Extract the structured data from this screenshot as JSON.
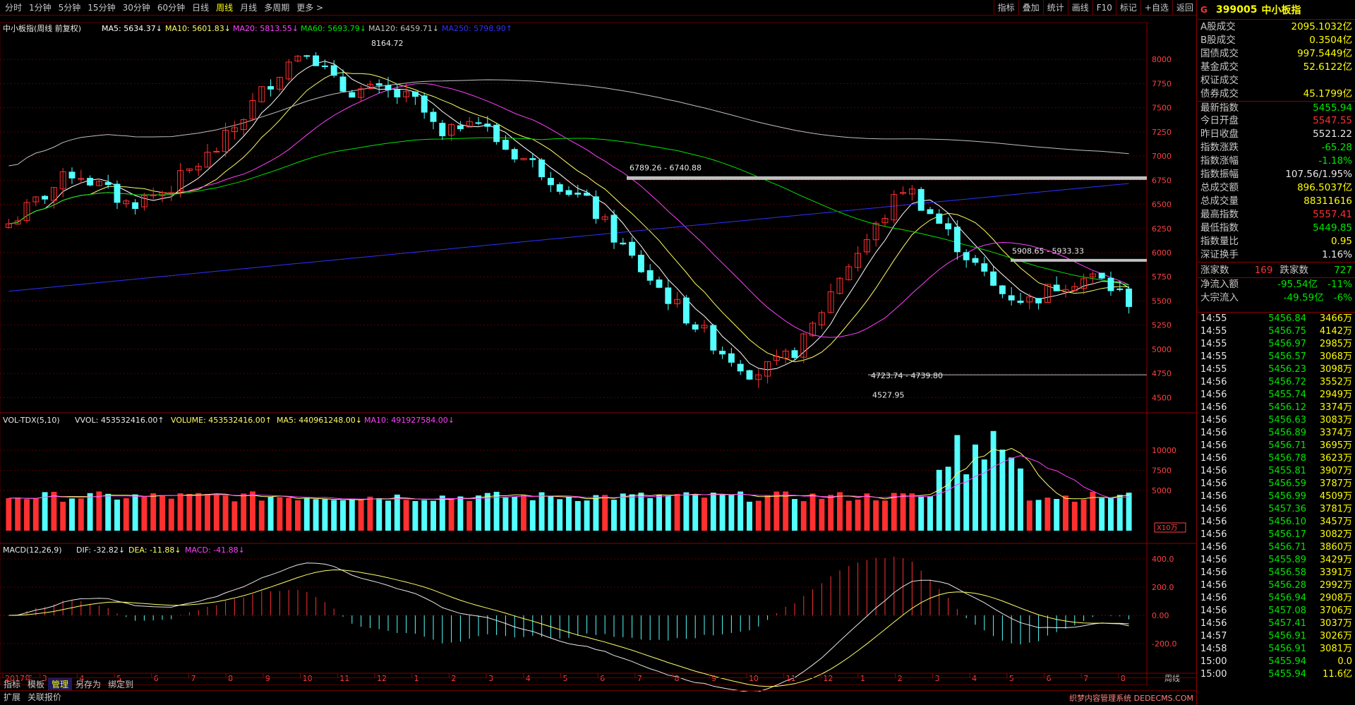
{
  "topbar": {
    "periods": [
      "分时",
      "1分钟",
      "5分钟",
      "15分钟",
      "30分钟",
      "60分钟",
      "日线",
      "周线",
      "月线",
      "多周期",
      "更多 >"
    ],
    "active_period": 7,
    "tools": [
      "指标",
      "叠加",
      "统计",
      "画线",
      "F10",
      "标记",
      "+自选",
      "返回"
    ]
  },
  "legend": {
    "title": "中小板指(周线 前复权)",
    "ma5": "MA5: 5634.37↓",
    "ma10": "MA10: 5601.83↓",
    "ma20": "MA20: 5813.55↓",
    "ma60": "MA60: 5693.79↓",
    "ma120": "MA120: 6459.71↓",
    "ma250": "MA250: 5798.90↑"
  },
  "vol_legend": {
    "title": "VOL-TDX(5,10)",
    "vvol": "VVOL: 453532416.00↑",
    "volume": "VOLUME: 453532416.00↑",
    "ma5": "MA5: 440961248.00↓",
    "ma10": "MA10: 491927584.00↓"
  },
  "macd_legend": {
    "title": "MACD(12,26,9)",
    "dif": "DIF: -32.82↓",
    "dea": "DEA: -11.88↓",
    "macd": "MACD: -41.88↓"
  },
  "annotations": {
    "high": "8164.72",
    "range1": "6789.26 - 6740.88",
    "range2": "5908.65 - 5933.33",
    "range3": "4723.74 - 4739.80",
    "low": "4527.95",
    "vol_unit": "X10万"
  },
  "price_axis": [
    "8000",
    "7750",
    "7500",
    "7250",
    "7000",
    "6750",
    "6500",
    "6250",
    "6000",
    "5750",
    "5500",
    "5250",
    "5000",
    "4750",
    "4500"
  ],
  "vol_axis": [
    "10000",
    "7500",
    "5000"
  ],
  "macd_axis": [
    "400.0",
    "200.0",
    "0.00",
    "-200.0"
  ],
  "time_axis": {
    "labels": [
      "2017年",
      "3",
      "4",
      "5",
      "6",
      "7",
      "8",
      "9",
      "10",
      "11",
      "12",
      "1",
      "2",
      "3",
      "4",
      "5",
      "6",
      "7",
      "8",
      "9",
      "10",
      "11",
      "12",
      "1",
      "2",
      "3",
      "4",
      "5",
      "6",
      "7",
      "8"
    ],
    "period_label": "周线"
  },
  "right_panel": {
    "mark": "G",
    "code": "399005",
    "name": "中小板指",
    "stats": [
      {
        "label": "A股成交",
        "value": "2095.1032亿",
        "cls": ""
      },
      {
        "label": "B股成交",
        "value": "0.3504亿",
        "cls": ""
      },
      {
        "label": "国债成交",
        "value": "997.5449亿",
        "cls": ""
      },
      {
        "label": "基金成交",
        "value": "52.6122亿",
        "cls": ""
      },
      {
        "label": "权证成交",
        "value": "",
        "cls": ""
      },
      {
        "label": "债券成交",
        "value": "45.1799亿",
        "cls": ""
      },
      {
        "label": "最新指数",
        "value": "5455.94",
        "cls": "down"
      },
      {
        "label": "今日开盘",
        "value": "5547.55",
        "cls": "up"
      },
      {
        "label": "昨日收盘",
        "value": "5521.22",
        "cls": "white"
      },
      {
        "label": "指数涨跌",
        "value": "-65.28",
        "cls": "down"
      },
      {
        "label": "指数涨幅",
        "value": "-1.18%",
        "cls": "down"
      },
      {
        "label": "指数振幅",
        "value": "107.56/1.95%",
        "cls": "white"
      },
      {
        "label": "总成交额",
        "value": "896.5037亿",
        "cls": ""
      },
      {
        "label": "总成交量",
        "value": "88311616",
        "cls": ""
      },
      {
        "label": "最高指数",
        "value": "5557.41",
        "cls": "up"
      },
      {
        "label": "最低指数",
        "value": "5449.85",
        "cls": "down"
      },
      {
        "label": "指数量比",
        "value": "0.95",
        "cls": ""
      },
      {
        "label": "深证换手",
        "value": "1.16%",
        "cls": "white"
      }
    ],
    "up_label": "涨家数",
    "up_count": "169",
    "down_label": "跌家数",
    "down_count": "727",
    "flows": [
      {
        "label": "净流入额",
        "value": "-95.54亿",
        "pct": "-11%"
      },
      {
        "label": "大宗流入",
        "value": "-49.59亿",
        "pct": "-6%"
      }
    ],
    "trades": [
      [
        "14:55",
        "5456.84",
        "3466万"
      ],
      [
        "14:55",
        "5456.75",
        "4142万"
      ],
      [
        "14:55",
        "5456.97",
        "2985万"
      ],
      [
        "14:55",
        "5456.57",
        "3068万"
      ],
      [
        "14:55",
        "5456.23",
        "3098万"
      ],
      [
        "14:56",
        "5456.72",
        "3552万"
      ],
      [
        "14:56",
        "5455.74",
        "2949万"
      ],
      [
        "14:56",
        "5456.12",
        "3374万"
      ],
      [
        "14:56",
        "5456.63",
        "3083万"
      ],
      [
        "14:56",
        "5456.89",
        "3374万"
      ],
      [
        "14:56",
        "5456.71",
        "3695万"
      ],
      [
        "14:56",
        "5456.78",
        "3623万"
      ],
      [
        "14:56",
        "5455.81",
        "3907万"
      ],
      [
        "14:56",
        "5456.59",
        "3787万"
      ],
      [
        "14:56",
        "5456.99",
        "4509万"
      ],
      [
        "14:56",
        "5457.36",
        "3781万"
      ],
      [
        "14:56",
        "5456.10",
        "3457万"
      ],
      [
        "14:56",
        "5456.17",
        "3082万"
      ],
      [
        "14:56",
        "5456.71",
        "3860万"
      ],
      [
        "14:56",
        "5455.89",
        "3429万"
      ],
      [
        "14:56",
        "5456.58",
        "3391万"
      ],
      [
        "14:56",
        "5456.28",
        "2992万"
      ],
      [
        "14:56",
        "5456.94",
        "2908万"
      ],
      [
        "14:56",
        "5457.08",
        "3706万"
      ],
      [
        "14:56",
        "5457.41",
        "3037万"
      ],
      [
        "14:57",
        "5456.91",
        "3026万"
      ],
      [
        "14:58",
        "5456.91",
        "3081万"
      ],
      [
        "15:00",
        "5455.94",
        "0.0"
      ],
      [
        "15:00",
        "5455.94",
        "11.6亿"
      ]
    ]
  },
  "bottombar": {
    "tabs": [
      "指标",
      "模板",
      "管理",
      "另存为",
      "绑定到"
    ],
    "active_tab": 2,
    "tabs2": [
      "扩展",
      "关联报价"
    ],
    "watermark": "织梦内容管理系统 DEDECMS.COM"
  },
  "colors": {
    "up": "#ff3030",
    "down": "#54ffff",
    "ma5": "#ffffff",
    "ma10": "#ffff66",
    "ma20": "#ff40ff",
    "ma60": "#00e600",
    "ma120": "#c0c0c0",
    "ma250": "#3030ff",
    "grid": "#5a0000"
  }
}
